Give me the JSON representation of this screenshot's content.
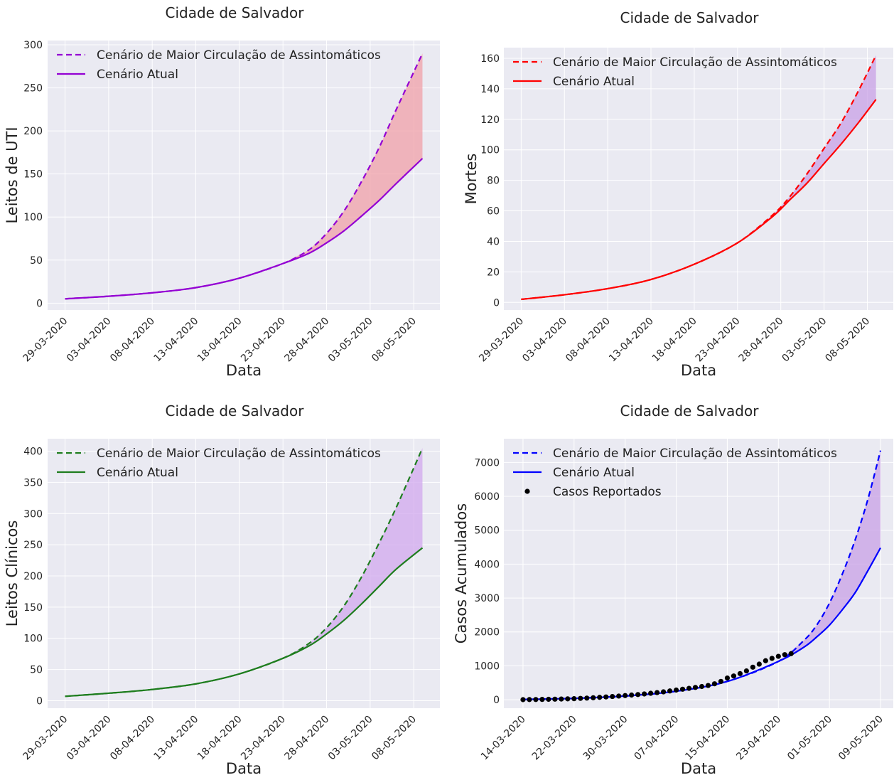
{
  "chart_data": [
    {
      "type": "line",
      "title": "Cidade de Salvador",
      "xlabel": "Data",
      "ylabel": "Leitos de UTI",
      "x_ticks": [
        "29-03-2020",
        "03-04-2020",
        "08-04-2020",
        "13-04-2020",
        "18-04-2020",
        "23-04-2020",
        "28-04-2020",
        "03-05-2020",
        "08-05-2020"
      ],
      "y_ticks": [
        "0",
        "50",
        "100",
        "150",
        "200",
        "250",
        "300"
      ],
      "ylim": [
        -8,
        305
      ],
      "x_range_days": [
        -2,
        43
      ],
      "legend": [
        "Cenário de Maior Circulação de Assintomáticos",
        "Cenário Atual"
      ],
      "colors": {
        "line": "#9400d3",
        "fill": "#f0a0a8"
      },
      "series": [
        {
          "name": "Cenário de Maior Circulação de Assintomáticos",
          "style": "dashed",
          "x_days": [
            0,
            5,
            10,
            15,
            20,
            25,
            28,
            30,
            32,
            34,
            36,
            38,
            41
          ],
          "values": [
            5,
            8,
            12,
            18,
            29,
            46,
            62,
            81,
            107,
            141,
            180,
            225,
            290
          ]
        },
        {
          "name": "Cenário Atual",
          "style": "solid",
          "x_days": [
            0,
            5,
            10,
            15,
            20,
            25,
            28,
            30,
            32,
            34,
            36,
            38,
            41
          ],
          "values": [
            5,
            8,
            12,
            18,
            29,
            46,
            58,
            70,
            84,
            101,
            119,
            139,
            168
          ]
        }
      ]
    },
    {
      "type": "line",
      "title": "Cidade de Salvador",
      "xlabel": "Data",
      "ylabel": "Mortes",
      "x_ticks": [
        "29-03-2020",
        "03-04-2020",
        "08-04-2020",
        "13-04-2020",
        "18-04-2020",
        "23-04-2020",
        "28-04-2020",
        "03-05-2020",
        "08-05-2020"
      ],
      "y_ticks": [
        "0",
        "20",
        "40",
        "60",
        "80",
        "100",
        "120",
        "140",
        "160"
      ],
      "ylim": [
        -5,
        167
      ],
      "x_range_days": [
        -2,
        43
      ],
      "legend": [
        "Cenário de Maior Circulação de Assintomáticos",
        "Cenário Atual"
      ],
      "colors": {
        "line": "#ff0000",
        "fill": "#c8a0e6"
      },
      "series": [
        {
          "name": "Cenário de Maior Circulação de Assintomáticos",
          "style": "dashed",
          "x_days": [
            0,
            5,
            10,
            15,
            20,
            25,
            29,
            31,
            33,
            35,
            37,
            39,
            41
          ],
          "values": [
            2,
            5,
            9,
            15,
            25,
            39,
            57,
            69,
            84,
            101,
            118,
            139,
            162
          ]
        },
        {
          "name": "Cenário Atual",
          "style": "solid",
          "x_days": [
            0,
            5,
            10,
            15,
            20,
            25,
            29,
            31,
            33,
            35,
            37,
            39,
            41
          ],
          "values": [
            2,
            5,
            9,
            15,
            25,
            39,
            56,
            67,
            78,
            91,
            104,
            118,
            133
          ]
        }
      ]
    },
    {
      "type": "line",
      "title": "Cidade de Salvador",
      "xlabel": "Data",
      "ylabel": "Leitos Clínicos",
      "x_ticks": [
        "29-03-2020",
        "03-04-2020",
        "08-04-2020",
        "13-04-2020",
        "18-04-2020",
        "23-04-2020",
        "28-04-2020",
        "03-05-2020",
        "08-05-2020"
      ],
      "y_ticks": [
        "0",
        "50",
        "100",
        "150",
        "200",
        "250",
        "300",
        "350",
        "400"
      ],
      "ylim": [
        -12,
        420
      ],
      "x_range_days": [
        -2,
        43
      ],
      "legend": [
        "Cenário de Maior Circulação de Assintomáticos",
        "Cenário Atual"
      ],
      "colors": {
        "line": "#1e7d1e",
        "fill": "#d2a8ee"
      },
      "series": [
        {
          "name": "Cenário de Maior Circulação de Assintomáticos",
          "style": "dashed",
          "x_days": [
            0,
            5,
            10,
            15,
            20,
            25,
            28,
            30,
            32,
            34,
            36,
            38,
            41
          ],
          "values": [
            7,
            12,
            18,
            27,
            43,
            68,
            92,
            117,
            152,
            198,
            252,
            310,
            405
          ]
        },
        {
          "name": "Cenário Atual",
          "style": "solid",
          "x_days": [
            0,
            5,
            10,
            15,
            20,
            25,
            28,
            30,
            32,
            34,
            36,
            38,
            41
          ],
          "values": [
            7,
            12,
            18,
            27,
            43,
            68,
            88,
            107,
            129,
            155,
            183,
            211,
            245
          ]
        }
      ]
    },
    {
      "type": "line",
      "title": "Cidade de Salvador",
      "xlabel": "Data",
      "ylabel": "Casos Acumulados",
      "x_ticks": [
        "14-03-2020",
        "22-03-2020",
        "30-03-2020",
        "07-04-2020",
        "15-04-2020",
        "23-04-2020",
        "01-05-2020",
        "09-05-2020"
      ],
      "y_ticks": [
        "0",
        "1000",
        "2000",
        "3000",
        "4000",
        "5000",
        "6000",
        "7000"
      ],
      "ylim": [
        -250,
        7700
      ],
      "x_range_days": [
        -3,
        58
      ],
      "legend": [
        "Cenário de Maior Circulação de Assintomáticos",
        "Cenário Atual",
        "Casos Reportados"
      ],
      "colors": {
        "line": "#0000ff",
        "fill": "#c8a0e6",
        "points": "#000000"
      },
      "series": [
        {
          "name": "Cenário de Maior Circulação de Assintomáticos",
          "style": "dashed",
          "x_days": [
            0,
            8,
            16,
            24,
            32,
            40,
            44,
            46,
            48,
            50,
            52,
            54,
            56
          ],
          "values": [
            8,
            40,
            110,
            250,
            540,
            1130,
            1750,
            2200,
            2850,
            3700,
            4700,
            5900,
            7350
          ]
        },
        {
          "name": "Cenário Atual",
          "style": "solid",
          "x_days": [
            0,
            8,
            16,
            24,
            32,
            40,
            44,
            46,
            48,
            50,
            52,
            54,
            56
          ],
          "values": [
            8,
            40,
            110,
            250,
            540,
            1130,
            1550,
            1850,
            2200,
            2650,
            3150,
            3800,
            4480
          ]
        },
        {
          "name": "Casos Reportados",
          "style": "points",
          "x_days": [
            0,
            1,
            2,
            3,
            4,
            5,
            6,
            7,
            8,
            9,
            10,
            11,
            12,
            13,
            14,
            15,
            16,
            17,
            18,
            19,
            20,
            21,
            22,
            23,
            24,
            25,
            26,
            27,
            28,
            29,
            30,
            31,
            32,
            33,
            34,
            35,
            36,
            37,
            38,
            39,
            40,
            41,
            42
          ],
          "values": [
            2,
            4,
            6,
            9,
            12,
            16,
            20,
            25,
            30,
            40,
            48,
            58,
            70,
            82,
            95,
            108,
            122,
            138,
            152,
            170,
            190,
            210,
            232,
            258,
            285,
            310,
            335,
            362,
            390,
            420,
            470,
            540,
            640,
            700,
            770,
            850,
            960,
            1050,
            1150,
            1220,
            1280,
            1330,
            1360
          ]
        }
      ]
    }
  ]
}
